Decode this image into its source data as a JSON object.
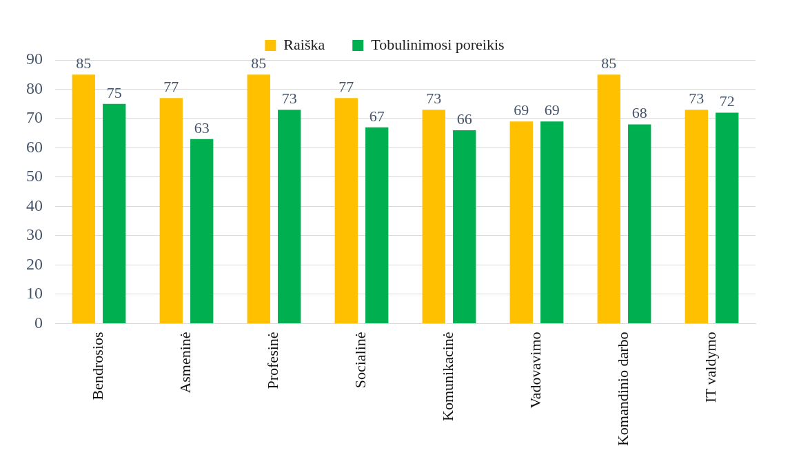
{
  "chart_data": {
    "type": "bar",
    "categories": [
      "Bendrosios",
      "Asmeninė",
      "Profesinė",
      "Socialinė",
      "Komunikacinė",
      "Vadovavimo",
      "Komandinio darbo",
      "IT valdymo"
    ],
    "series": [
      {
        "name": "Raiška",
        "color": "#ffc000",
        "values": [
          85,
          77,
          85,
          77,
          73,
          69,
          85,
          73
        ]
      },
      {
        "name": "Tobulinimosi poreikis",
        "color": "#00b050",
        "values": [
          75,
          63,
          73,
          67,
          66,
          69,
          68,
          72
        ]
      }
    ],
    "ylim": [
      0,
      90
    ],
    "yticks": [
      0,
      10,
      20,
      30,
      40,
      50,
      60,
      70,
      80,
      90
    ],
    "grid": "y",
    "legend": "top",
    "data_labels": true
  }
}
